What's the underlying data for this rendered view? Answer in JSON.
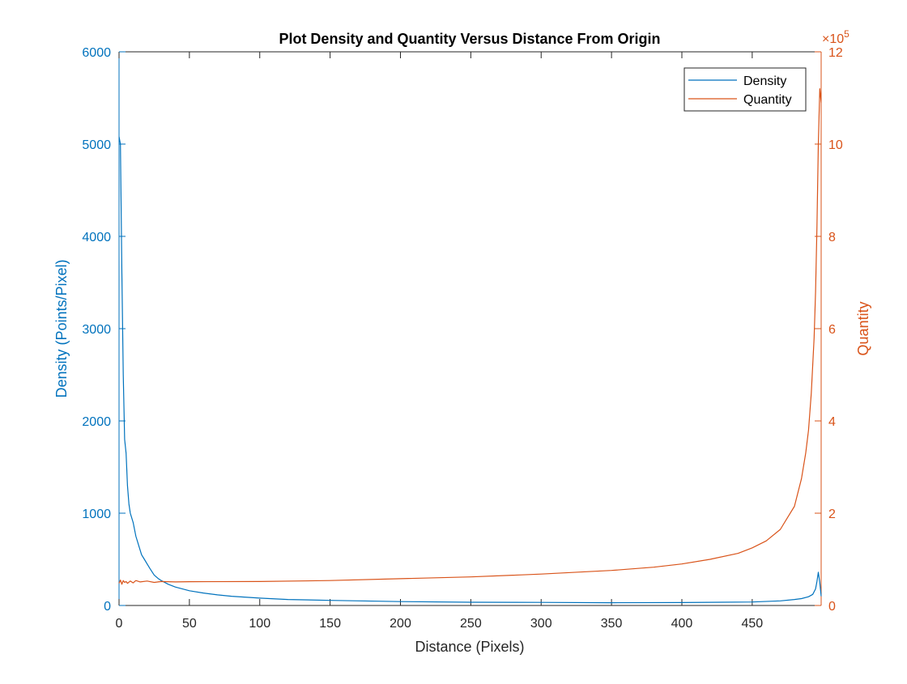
{
  "chart_data": {
    "type": "line",
    "title": "Plot Density and Quantity Versus Distance From Origin",
    "xlabel": "Distance (Pixels)",
    "xlim": [
      0,
      499
    ],
    "xticks": [
      0,
      50,
      100,
      150,
      200,
      250,
      300,
      350,
      400,
      450
    ],
    "y_left": {
      "label": "Density (Points/Pixel)",
      "lim": [
        0,
        6000
      ],
      "ticks": [
        0,
        1000,
        2000,
        3000,
        4000,
        5000,
        6000
      ],
      "color": "#0072BD"
    },
    "y_right": {
      "label": "Quantity",
      "lim": [
        0,
        1200000
      ],
      "ticks": [
        0,
        200000,
        400000,
        600000,
        800000,
        1000000,
        1200000
      ],
      "tick_labels": [
        "0",
        "2",
        "4",
        "6",
        "8",
        "10",
        "12"
      ],
      "exponent_label": "×10",
      "exponent_power": "5",
      "color": "#D95319"
    },
    "legend": {
      "placement": "top-right",
      "entries": [
        "Density",
        "Quantity"
      ]
    },
    "grid": false,
    "series": [
      {
        "name": "Density",
        "axis": "left",
        "color": "#0072BD",
        "x": [
          0,
          1,
          2,
          3,
          4,
          5,
          6,
          7,
          8,
          10,
          12,
          14,
          16,
          18,
          20,
          22,
          25,
          28,
          30,
          35,
          40,
          50,
          60,
          70,
          80,
          100,
          120,
          150,
          200,
          250,
          300,
          350,
          400,
          450,
          470,
          480,
          485,
          490,
          493,
          495,
          496,
          497,
          498,
          499
        ],
        "y": [
          5080,
          5000,
          3600,
          2500,
          1800,
          1650,
          1300,
          1100,
          1000,
          900,
          750,
          650,
          550,
          500,
          450,
          400,
          330,
          290,
          270,
          230,
          200,
          160,
          135,
          115,
          100,
          80,
          65,
          55,
          42,
          35,
          33,
          30,
          32,
          38,
          50,
          65,
          75,
          95,
          120,
          180,
          260,
          360,
          250,
          100
        ]
      },
      {
        "name": "Quantity",
        "axis": "right",
        "color": "#D95319",
        "x": [
          0,
          1,
          2,
          3,
          4,
          5,
          6,
          8,
          10,
          12,
          15,
          20,
          25,
          30,
          40,
          50,
          100,
          150,
          200,
          250,
          300,
          350,
          380,
          400,
          420,
          440,
          450,
          460,
          470,
          475,
          480,
          485,
          488,
          490,
          492,
          494,
          495,
          496,
          497,
          498,
          499
        ],
        "y": [
          48000,
          55000,
          46000,
          54000,
          50000,
          52000,
          48000,
          53000,
          49000,
          54000,
          51000,
          53000,
          50000,
          52000,
          51000,
          51500,
          52000,
          54000,
          58000,
          62000,
          68000,
          76000,
          83000,
          90000,
          100000,
          113000,
          125000,
          140000,
          165000,
          190000,
          215000,
          275000,
          330000,
          380000,
          460000,
          580000,
          680000,
          820000,
          1000000,
          1120000,
          1090000
        ]
      }
    ]
  }
}
